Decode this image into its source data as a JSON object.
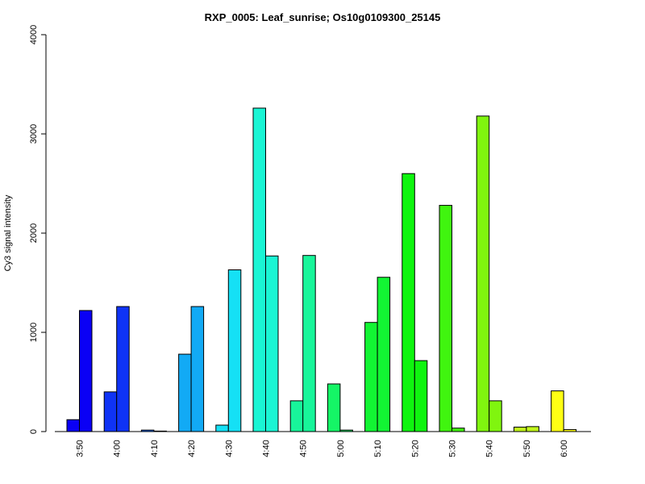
{
  "chart_data": {
    "type": "bar",
    "title": "RXP_0005: Leaf_sunrise; Os10g0109300_25145",
    "xlabel": "",
    "ylabel": "Cy3 signal intensity",
    "ylim": [
      0,
      4000
    ],
    "yticks": [
      0,
      1000,
      2000,
      3000,
      4000
    ],
    "categories": [
      "3:50",
      "4:00",
      "4:10",
      "4:20",
      "4:30",
      "4:40",
      "4:50",
      "5:00",
      "5:10",
      "5:20",
      "5:30",
      "5:40",
      "5:50",
      "6:00"
    ],
    "colors": [
      "#0a00f5",
      "#0f33f5",
      "#1066f5",
      "#12aaf5",
      "#15e0f5",
      "#1af5d4",
      "#18f59a",
      "#15f566",
      "#12f533",
      "#0ff50f",
      "#40f50f",
      "#80f50f",
      "#c0f51a",
      "#ffff14"
    ],
    "series": [
      {
        "values": [
          120,
          400,
          15,
          780,
          65,
          3260,
          310,
          480,
          1100,
          2600,
          2280,
          3180,
          45,
          410
        ]
      },
      {
        "values": [
          1220,
          1260,
          5,
          1260,
          1630,
          1770,
          1775,
          15,
          1555,
          715,
          35,
          310,
          50,
          20
        ]
      }
    ]
  }
}
